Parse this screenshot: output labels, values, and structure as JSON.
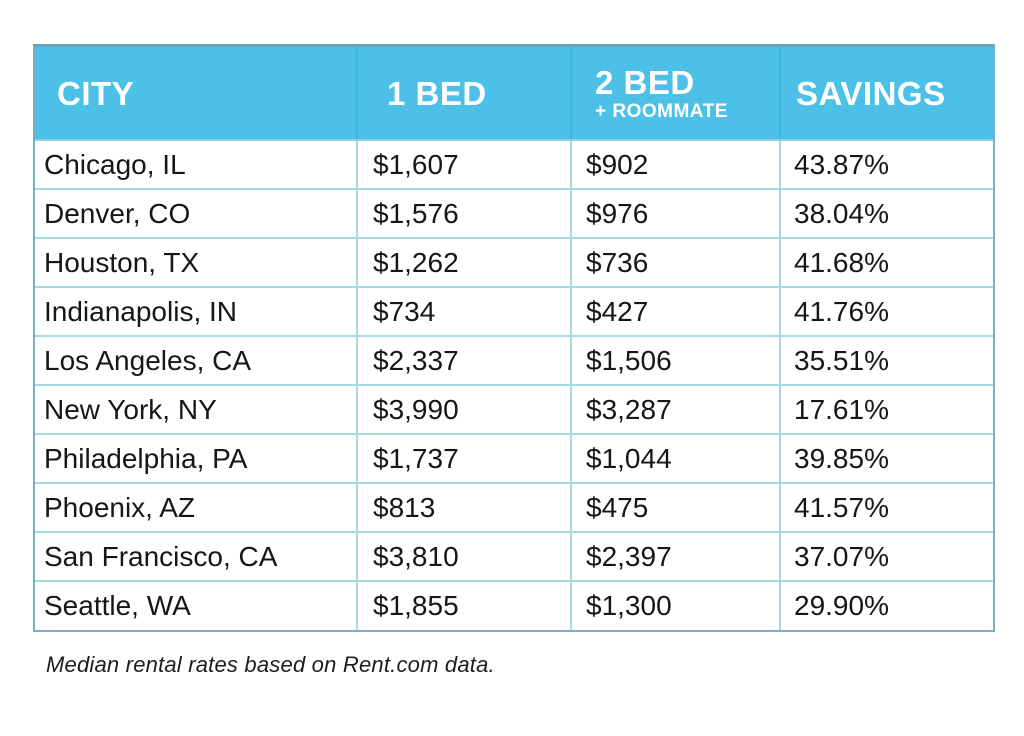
{
  "colors": {
    "header_bg": "#4dc0e8",
    "header_text": "#ffffff",
    "outer_border": "#74b2c5",
    "inner_border": "#a6d9e4",
    "body_text": "#161616",
    "page_bg": "#ffffff"
  },
  "table": {
    "columns": [
      {
        "label": "CITY",
        "sub": ""
      },
      {
        "label": "1 BED",
        "sub": ""
      },
      {
        "label": "2 BED",
        "sub": "+ ROOMMATE"
      },
      {
        "label": "SAVINGS",
        "sub": ""
      }
    ],
    "rows": [
      [
        "Chicago, IL",
        "$1,607",
        "$902",
        "43.87%"
      ],
      [
        "Denver, CO",
        "$1,576",
        "$976",
        "38.04%"
      ],
      [
        "Houston, TX",
        "$1,262",
        "$736",
        "41.68%"
      ],
      [
        "Indianapolis, IN",
        "$734",
        "$427",
        "41.76%"
      ],
      [
        "Los Angeles, CA",
        "$2,337",
        "$1,506",
        "35.51%"
      ],
      [
        "New York, NY",
        "$3,990",
        "$3,287",
        "17.61%"
      ],
      [
        "Philadelphia, PA",
        "$1,737",
        "$1,044",
        "39.85%"
      ],
      [
        "Phoenix, AZ",
        "$813",
        "$475",
        "41.57%"
      ],
      [
        "San Francisco, CA",
        "$3,810",
        "$2,397",
        "37.07%"
      ],
      [
        "Seattle, WA",
        "$1,855",
        "$1,300",
        "29.90%"
      ]
    ]
  },
  "footnote": "Median rental rates based on Rent.com data.",
  "chart_data": {
    "type": "table",
    "title": "",
    "columns": [
      "CITY",
      "1 BED",
      "2 BED + ROOMMATE",
      "SAVINGS"
    ],
    "rows": [
      [
        "Chicago, IL",
        "$1,607",
        "$902",
        "43.87%"
      ],
      [
        "Denver, CO",
        "$1,576",
        "$976",
        "38.04%"
      ],
      [
        "Houston, TX",
        "$1,262",
        "$736",
        "41.68%"
      ],
      [
        "Indianapolis, IN",
        "$734",
        "$427",
        "41.76%"
      ],
      [
        "Los Angeles, CA",
        "$2,337",
        "$1,506",
        "35.51%"
      ],
      [
        "New York, NY",
        "$3,990",
        "$3,287",
        "17.61%"
      ],
      [
        "Philadelphia, PA",
        "$1,737",
        "$1,044",
        "39.85%"
      ],
      [
        "Phoenix, AZ",
        "$813",
        "$475",
        "41.57%"
      ],
      [
        "San Francisco, CA",
        "$3,810",
        "$2,397",
        "37.07%"
      ],
      [
        "Seattle, WA",
        "$1,855",
        "$1,300",
        "29.90%"
      ]
    ],
    "cities": [
      "Chicago, IL",
      "Denver, CO",
      "Houston, TX",
      "Indianapolis, IN",
      "Los Angeles, CA",
      "New York, NY",
      "Philadelphia, PA",
      "Phoenix, AZ",
      "San Francisco, CA",
      "Seattle, WA"
    ],
    "one_bed_usd": [
      1607,
      1576,
      1262,
      734,
      2337,
      3990,
      1737,
      813,
      3810,
      1855
    ],
    "two_bed_roommate_usd": [
      902,
      976,
      736,
      427,
      1506,
      3287,
      1044,
      475,
      2397,
      1300
    ],
    "savings_percent": [
      43.87,
      38.04,
      41.68,
      41.76,
      35.51,
      17.61,
      39.85,
      41.57,
      37.07,
      29.9
    ],
    "footnote": "Median rental rates based on Rent.com data."
  }
}
